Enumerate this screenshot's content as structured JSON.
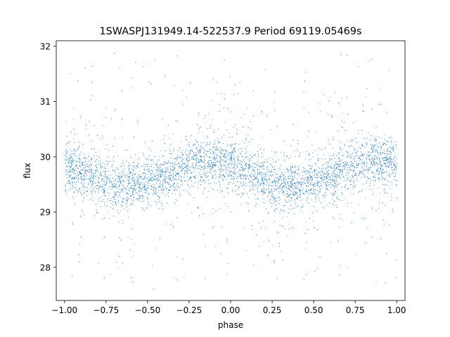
{
  "chart_data": {
    "type": "scatter",
    "title": "1SWASPJ131949.14-522537.9 Period 69119.05469s",
    "xlabel": "phase",
    "ylabel": "flux",
    "xlim": [
      -1.05,
      1.05
    ],
    "ylim": [
      27.4,
      32.1
    ],
    "xticks": [
      -1.0,
      -0.75,
      -0.5,
      -0.25,
      0.0,
      0.25,
      0.5,
      0.75,
      1.0
    ],
    "xtick_labels": [
      "−1.00",
      "−0.75",
      "−0.50",
      "−0.25",
      "0.00",
      "0.25",
      "0.50",
      "0.75",
      "1.00"
    ],
    "yticks": [
      28,
      29,
      30,
      31,
      32
    ],
    "ytick_labels": [
      "28",
      "29",
      "30",
      "31",
      "32"
    ],
    "grid": false,
    "marker_color": "#1f77b4",
    "series": [
      {
        "description_of_trend": "phase-folded light curve, two maxima near phase -0.2 and 0.8 at flux ~29.95, minima near phase -0.7 and 0.3 at flux ~29.5",
        "x": [
          -1.0,
          -0.9,
          -0.8,
          -0.7,
          -0.6,
          -0.5,
          -0.4,
          -0.3,
          -0.2,
          -0.1,
          0.0,
          0.1,
          0.2,
          0.3,
          0.4,
          0.5,
          0.6,
          0.7,
          0.8,
          0.9,
          1.0
        ],
        "y": [
          29.85,
          29.75,
          29.6,
          29.5,
          29.5,
          29.55,
          29.65,
          29.8,
          29.95,
          29.9,
          29.85,
          29.75,
          29.6,
          29.5,
          29.5,
          29.55,
          29.65,
          29.8,
          29.95,
          29.9,
          29.85
        ]
      }
    ]
  }
}
